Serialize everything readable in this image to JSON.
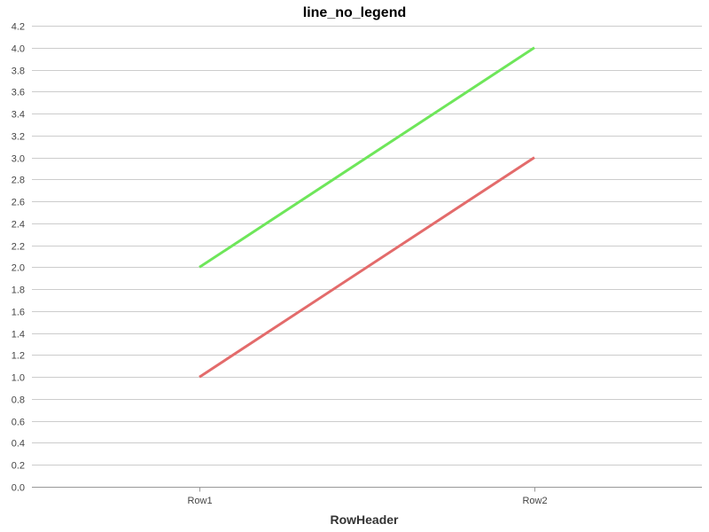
{
  "chart_data": {
    "type": "line",
    "title": "line_no_legend",
    "xlabel": "RowHeader",
    "ylabel": "",
    "categories": [
      "Row1",
      "Row2"
    ],
    "series": [
      {
        "values": [
          2.0,
          4.0
        ],
        "color": "#6ee65a"
      },
      {
        "values": [
          1.0,
          3.0
        ],
        "color": "#e36b6b"
      }
    ],
    "ylim": [
      0,
      4.2
    ],
    "ytick_step": 0.2,
    "ytick_labels": [
      "0.0",
      "0.2",
      "0.4",
      "0.6",
      "0.8",
      "1.0",
      "1.2",
      "1.4",
      "1.6",
      "1.8",
      "2.0",
      "2.2",
      "2.4",
      "2.6",
      "2.8",
      "3.0",
      "3.2",
      "3.4",
      "3.6",
      "3.8",
      "4.0",
      "4.2"
    ],
    "grid": true,
    "legend": "none"
  }
}
